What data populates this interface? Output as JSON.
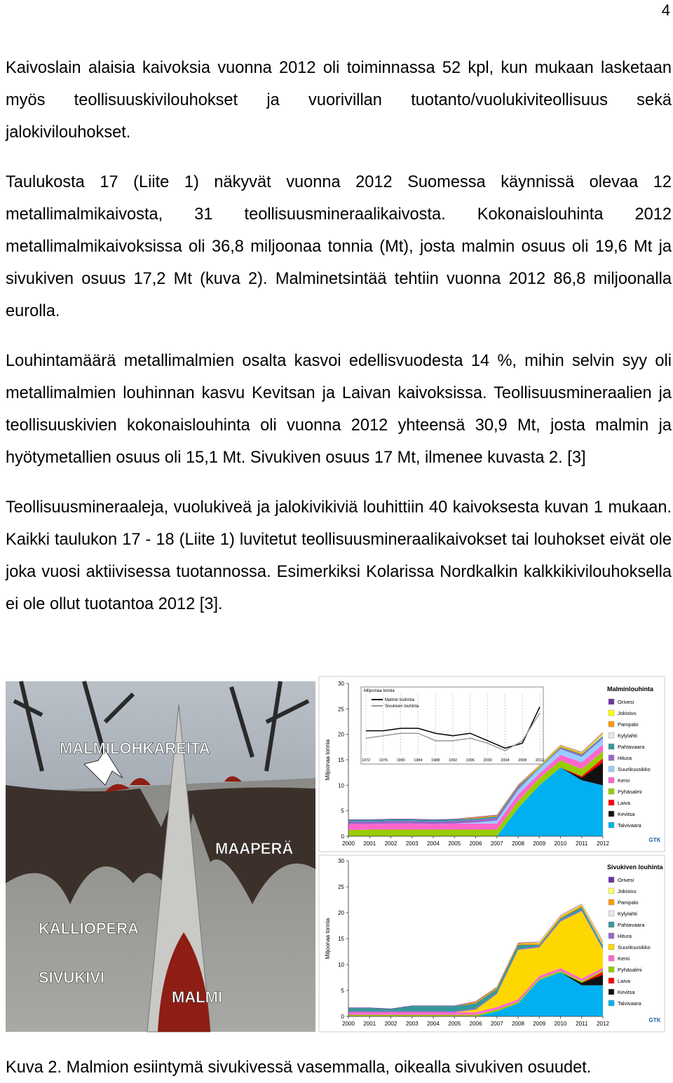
{
  "page_number": "4",
  "paragraphs": [
    "Kaivoslain alaisia kaivoksia vuonna 2012 oli toiminnassa 52 kpl, kun mukaan lasketaan myös teollisuuskivilouhokset ja vuorivillan tuotanto/vuolukiviteollisuus sekä jalokivilouhokset.",
    "Taulukosta 17 (Liite 1) näkyvät vuonna 2012 Suomessa käynnissä olevaa 12 metallimalmikaivosta, 31 teollisuusmineraalikaivosta. Kokonaislouhinta 2012 metallimalmikaivoksissa oli 36,8 miljoonaa tonnia (Mt), josta malmin osuus oli 19,6 Mt ja sivukiven osuus 17,2 Mt (kuva 2). Malminetsintää tehtiin vuonna 2012 86,8 miljoonalla eurolla.",
    "Louhintamäärä metallimalmien osalta kasvoi edellisvuodesta 14 %, mihin selvin syy oli metallimalmien louhinnan kasvu Kevitsan ja Laivan kaivoksissa. Teollisuusmineraalien ja teollisuuskivien kokonaislouhinta oli vuonna 2012 yhteensä 30,9 Mt, josta malmin ja hyötymetallien osuus oli 15,1 Mt. Sivukiven osuus 17 Mt, ilmenee kuvasta 2. [3]",
    "Teollisuusmineraaleja, vuolukiveä ja jalokivikiviä louhittiin 40 kaivoksesta kuvan 1 mukaan. Kaikki taulukon 17 - 18 (Liite 1) luvitetut teollisuusmineraalikaivokset tai louhokset eivät ole joka vuosi aktiivisessa tuotannossa. Esimerkiksi Kolarissa Nordkalkin kalkkikivilouhoksella ei ole ollut tuotantoa 2012 [3]."
  ],
  "illustration": {
    "labels": [
      "MALMILOHKAREITA",
      "MAAPERÄ",
      "KALLIOPERÄ",
      "SIVUKIVI",
      "MALMI"
    ]
  },
  "chart_data": [
    {
      "type": "stacked_area",
      "title": "Malminlouhinta",
      "ylabel": "Miljoonaa tonnia",
      "logo": "GTK",
      "x": [
        2000,
        2001,
        2002,
        2003,
        2004,
        2005,
        2006,
        2007,
        2008,
        2009,
        2010,
        2011,
        2012
      ],
      "xlim": [
        2000,
        2012
      ],
      "xticks": [
        2000,
        2001,
        2002,
        2003,
        2004,
        2005,
        2006,
        2007,
        2008,
        2009,
        2010,
        2011,
        2012
      ],
      "ylim": [
        0,
        30
      ],
      "yticks": [
        0,
        5,
        10,
        15,
        20,
        25,
        30
      ],
      "series": [
        {
          "name": "Orivesi",
          "color": "#7030a0",
          "values": [
            0.1,
            0.1,
            0.1,
            0.1,
            0.1,
            0.1,
            0.1,
            0.1,
            0.1,
            0.1,
            0.1,
            0.1,
            0.1
          ]
        },
        {
          "name": "Jokisivu",
          "color": "#ffff00",
          "values": [
            0,
            0,
            0,
            0,
            0,
            0,
            0,
            0,
            0,
            0.15,
            0.15,
            0.15,
            0.15
          ]
        },
        {
          "name": "Pampalo",
          "color": "#ff9900",
          "values": [
            0,
            0,
            0,
            0,
            0,
            0,
            0.2,
            0.2,
            0.2,
            0.2,
            0.2,
            0.2,
            0.2
          ]
        },
        {
          "name": "Kylylahti",
          "color": "#e8e8e8",
          "values": [
            0,
            0,
            0,
            0,
            0,
            0,
            0,
            0,
            0,
            0,
            0,
            0,
            0.3
          ]
        },
        {
          "name": "Pahtavaara",
          "color": "#339999",
          "values": [
            0.3,
            0.3,
            0.3,
            0.3,
            0.3,
            0.3,
            0.3,
            0.3,
            0.3,
            0.2,
            0.2,
            0.2,
            0.3
          ]
        },
        {
          "name": "Hitura",
          "color": "#9966cc",
          "values": [
            0.5,
            0.5,
            0.5,
            0.5,
            0.5,
            0.5,
            0.5,
            0.5,
            0.4,
            0,
            0.2,
            0.3,
            0.2
          ]
        },
        {
          "name": "Suurikuusikko",
          "color": "#99ccff",
          "values": [
            0,
            0,
            0,
            0,
            0,
            0,
            0.2,
            0.6,
            0.9,
            1,
            1.1,
            1.1,
            1.2
          ]
        },
        {
          "name": "Kemi",
          "color": "#ff66cc",
          "values": [
            1.2,
            1.1,
            1.2,
            1.2,
            1.1,
            1.2,
            1.2,
            1.2,
            1.3,
            0.9,
            1.1,
            1.3,
            1.3
          ]
        },
        {
          "name": "Pyhäsalmi",
          "color": "#99cc00",
          "values": [
            1.2,
            1.3,
            1.3,
            1.3,
            1.3,
            1.3,
            1.3,
            1.3,
            1.4,
            1.4,
            1.4,
            1.4,
            1.4
          ]
        },
        {
          "name": "Laiva",
          "color": "#ff0000",
          "values": [
            0,
            0,
            0,
            0,
            0,
            0,
            0,
            0,
            0,
            0,
            0,
            0.3,
            0.8
          ]
        },
        {
          "name": "Kevitsa",
          "color": "#111111",
          "values": [
            0,
            0,
            0,
            0,
            0,
            0,
            0,
            0,
            0,
            0,
            0,
            0.5,
            4.5
          ]
        },
        {
          "name": "Talvivaara",
          "color": "#00b0f0",
          "values": [
            0,
            0,
            0,
            0,
            0,
            0,
            0,
            0,
            5.5,
            10,
            13.5,
            11,
            10
          ]
        }
      ]
    },
    {
      "type": "stacked_area",
      "title": "Sivukiven louhinta",
      "ylabel": "Miljoonaa tonnia",
      "logo": "GTK",
      "x": [
        2000,
        2001,
        2002,
        2003,
        2004,
        2005,
        2006,
        2007,
        2008,
        2009,
        2010,
        2011,
        2012
      ],
      "xlim": [
        2000,
        2012
      ],
      "xticks": [
        2000,
        2001,
        2002,
        2003,
        2004,
        2005,
        2006,
        2007,
        2008,
        2009,
        2010,
        2011,
        2012
      ],
      "ylim": [
        0,
        30
      ],
      "yticks": [
        0,
        5,
        10,
        15,
        20,
        25,
        30
      ],
      "series": [
        {
          "name": "Orivesi",
          "color": "#7030a0",
          "values": [
            0.1,
            0.1,
            0.1,
            0.1,
            0.1,
            0.1,
            0.1,
            0.1,
            0.1,
            0.1,
            0.1,
            0.1,
            0.1
          ]
        },
        {
          "name": "Jokisivu",
          "color": "#ffff66",
          "values": [
            0,
            0,
            0,
            0,
            0,
            0,
            0,
            0,
            0,
            0.2,
            0.2,
            0.2,
            0.2
          ]
        },
        {
          "name": "Pampalo",
          "color": "#ff9900",
          "values": [
            0,
            0,
            0,
            0,
            0,
            0,
            0.3,
            0.3,
            0.3,
            0.3,
            0.3,
            0.3,
            0.3
          ]
        },
        {
          "name": "Kylylahti",
          "color": "#e8e8e8",
          "values": [
            0,
            0,
            0,
            0,
            0,
            0,
            0,
            0,
            0,
            0,
            0,
            0,
            0.3
          ]
        },
        {
          "name": "Pahtavaara",
          "color": "#339999",
          "values": [
            0.6,
            0.6,
            0.4,
            1,
            1,
            1,
            1,
            0.8,
            0.8,
            0.3,
            0.4,
            0.6,
            0.6
          ]
        },
        {
          "name": "Hitura",
          "color": "#9966cc",
          "values": [
            0.2,
            0.2,
            0.2,
            0.2,
            0.2,
            0.2,
            0.2,
            0.2,
            0.2,
            0.2,
            0.2,
            0.2,
            0.2
          ]
        },
        {
          "name": "Suurikuusikko",
          "color": "#ffd700",
          "values": [
            0,
            0,
            0,
            0,
            0,
            0,
            0.5,
            2.5,
            9.5,
            5.5,
            9,
            13,
            3.5
          ]
        },
        {
          "name": "Kemi",
          "color": "#ff66cc",
          "values": [
            0.5,
            0.5,
            0.5,
            0.5,
            0.5,
            0.5,
            0.5,
            0.5,
            0.5,
            0.5,
            0.5,
            0.5,
            0.5
          ]
        },
        {
          "name": "Pyhäsalmi",
          "color": "#99cc00",
          "values": [
            0.3,
            0.3,
            0.3,
            0.3,
            0.3,
            0.3,
            0.3,
            0.3,
            0.3,
            0.3,
            0.3,
            0.3,
            0.3
          ]
        },
        {
          "name": "Laiva",
          "color": "#ff0000",
          "values": [
            0,
            0,
            0,
            0,
            0,
            0,
            0,
            0,
            0,
            0,
            0,
            0,
            0.6
          ]
        },
        {
          "name": "Kevitsa",
          "color": "#111111",
          "values": [
            0,
            0,
            0,
            0,
            0,
            0,
            0,
            0,
            0,
            0,
            0,
            0.5,
            2
          ]
        },
        {
          "name": "Talvivaara",
          "color": "#00b0f0",
          "values": [
            0,
            0,
            0,
            0,
            0,
            0,
            0,
            1,
            2.5,
            7,
            8.5,
            6,
            6
          ]
        }
      ]
    },
    {
      "type": "line",
      "title": "Miljoonaa tonnia",
      "x": [
        1972,
        1976,
        1980,
        1984,
        1988,
        1992,
        1996,
        2000,
        2004,
        2008,
        2012
      ],
      "xlim": [
        1972,
        2012
      ],
      "xticks": [
        1972,
        1976,
        1980,
        1984,
        1988,
        1992,
        1996,
        2000,
        2004,
        2008,
        2012
      ],
      "ylim": [
        0,
        22
      ],
      "series": [
        {
          "name": "Malmin louhinta",
          "color": "#000000",
          "values": [
            10,
            10,
            11,
            11,
            9,
            8,
            9,
            6,
            3,
            5,
            19.6
          ]
        },
        {
          "name": "Sivukiven louhinta",
          "color": "#999999",
          "values": [
            7,
            8,
            9,
            9,
            6,
            6,
            7,
            5,
            2,
            6,
            17.2
          ]
        }
      ]
    }
  ],
  "caption": "Kuva 2. Malmion esiintymä sivukivessä vasemmalla, oikealla sivukiven osuudet."
}
